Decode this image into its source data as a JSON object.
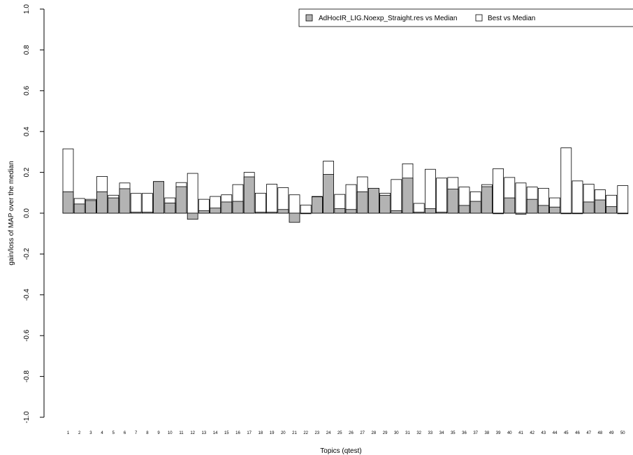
{
  "chart_data": {
    "type": "bar",
    "xlabel": "Topics (qtest)",
    "ylabel": "gain/loss of MAP over the median",
    "ylim": [
      -1.0,
      1.0
    ],
    "yticks": [
      "-1.0",
      "-0.8",
      "-0.6",
      "-0.4",
      "-0.2",
      "0.0",
      "0.2",
      "0.4",
      "0.6",
      "0.8",
      "1.0"
    ],
    "grid": false,
    "legend_position": "top-right",
    "categories": [
      "1",
      "2",
      "3",
      "4",
      "5",
      "6",
      "7",
      "8",
      "9",
      "10",
      "11",
      "12",
      "13",
      "14",
      "15",
      "16",
      "17",
      "18",
      "19",
      "20",
      "21",
      "22",
      "23",
      "24",
      "25",
      "26",
      "27",
      "28",
      "29",
      "30",
      "31",
      "32",
      "33",
      "34",
      "35",
      "36",
      "37",
      "38",
      "39",
      "40",
      "41",
      "42",
      "43",
      "44",
      "45",
      "46",
      "47",
      "48",
      "49",
      "50"
    ],
    "series": [
      {
        "name": "AdHocIR_LIG.Noexp_Straight.res vs Median",
        "color": "#b3b3b3",
        "values": [
          0.105,
          0.045,
          0.062,
          0.105,
          0.075,
          0.12,
          0.005,
          0.005,
          0.155,
          0.05,
          0.13,
          -0.03,
          0.012,
          0.025,
          0.055,
          0.058,
          0.178,
          0.005,
          0.005,
          0.018,
          -0.045,
          0.0,
          0.08,
          0.19,
          0.022,
          0.018,
          0.105,
          0.122,
          0.088,
          0.012,
          0.172,
          0.005,
          0.022,
          0.005,
          0.118,
          0.038,
          0.058,
          0.13,
          0.0,
          0.075,
          -0.005,
          0.068,
          0.038,
          0.03,
          0.0,
          0.0,
          0.055,
          0.065,
          0.032,
          0.0
        ]
      },
      {
        "name": "Best vs Median",
        "color": "#ffffff",
        "values": [
          0.315,
          0.072,
          0.068,
          0.18,
          0.088,
          0.148,
          0.097,
          0.097,
          0.155,
          0.075,
          0.15,
          0.195,
          0.068,
          0.082,
          0.09,
          0.14,
          0.2,
          0.098,
          0.142,
          0.125,
          0.09,
          0.04,
          0.082,
          0.255,
          0.092,
          0.14,
          0.178,
          0.122,
          0.098,
          0.165,
          0.242,
          0.048,
          0.215,
          0.172,
          0.175,
          0.128,
          0.105,
          0.14,
          0.218,
          0.175,
          0.148,
          0.128,
          0.122,
          0.075,
          0.32,
          0.158,
          0.142,
          0.115,
          0.088,
          0.135
        ]
      }
    ]
  }
}
